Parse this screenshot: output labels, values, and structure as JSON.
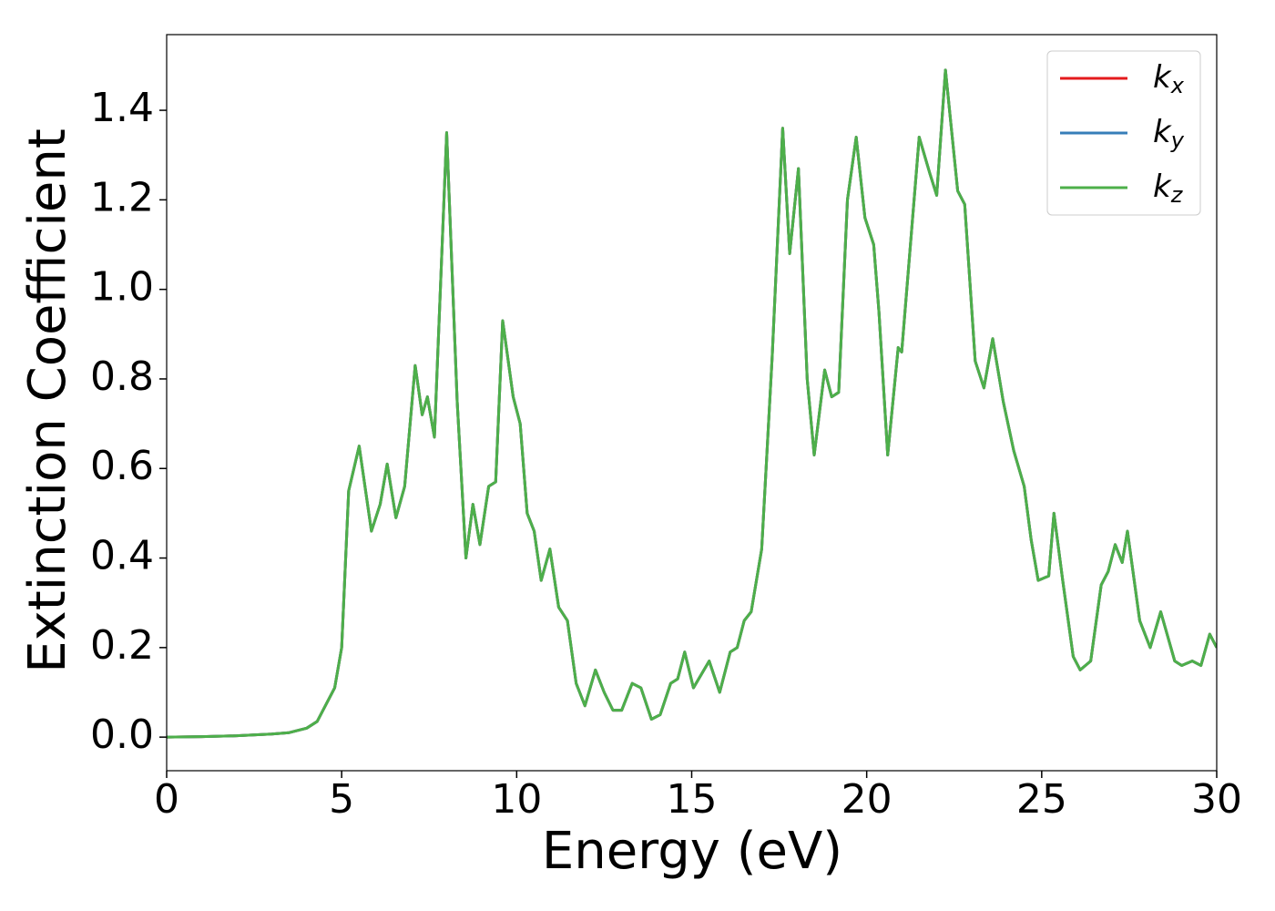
{
  "chart_data": {
    "type": "line",
    "xlabel": "Energy (eV)",
    "ylabel": "Extinction Coefficient",
    "xlim": [
      0,
      30
    ],
    "ylim": [
      -0.075,
      1.569
    ],
    "xticks": [
      0,
      5,
      10,
      15,
      20,
      25,
      30
    ],
    "yticks": [
      {
        "value": 0,
        "label": "0.0"
      },
      0.2,
      0.4,
      0.6,
      0.8,
      {
        "value": 1,
        "label": "1.0"
      },
      1.2,
      1.4
    ],
    "legend": "upper right",
    "x": [
      0,
      1,
      2,
      3,
      3.5,
      4,
      4.3,
      4.6,
      4.8,
      5.0,
      5.2,
      5.5,
      5.85,
      6.1,
      6.3,
      6.55,
      6.8,
      7.1,
      7.3,
      7.45,
      7.65,
      8.0,
      8.3,
      8.55,
      8.75,
      8.95,
      9.2,
      9.4,
      9.6,
      9.9,
      10.1,
      10.3,
      10.5,
      10.7,
      10.95,
      11.2,
      11.45,
      11.7,
      11.95,
      12.25,
      12.5,
      12.75,
      13.0,
      13.3,
      13.55,
      13.85,
      14.1,
      14.4,
      14.6,
      14.8,
      15.05,
      15.5,
      15.8,
      16.1,
      16.3,
      16.5,
      16.7,
      17.0,
      17.3,
      17.6,
      17.8,
      18.05,
      18.3,
      18.5,
      18.8,
      19.0,
      19.2,
      19.45,
      19.7,
      19.95,
      20.2,
      20.35,
      20.6,
      20.9,
      21.0,
      21.5,
      21.8,
      22.0,
      22.25,
      22.6,
      22.8,
      23.1,
      23.35,
      23.6,
      23.9,
      24.2,
      24.5,
      24.7,
      24.9,
      25.2,
      25.35,
      25.6,
      25.9,
      26.1,
      26.4,
      26.7,
      26.9,
      27.1,
      27.3,
      27.45,
      27.8,
      28.1,
      28.4,
      28.8,
      29.0,
      29.3,
      29.55,
      29.8,
      30
    ],
    "series": [
      {
        "name": "kx",
        "color": "#e41a1c",
        "values": [
          0.0,
          0.001,
          0.003,
          0.007,
          0.01,
          0.02,
          0.035,
          0.08,
          0.11,
          0.2,
          0.55,
          0.65,
          0.46,
          0.52,
          0.61,
          0.49,
          0.56,
          0.83,
          0.72,
          0.76,
          0.67,
          1.35,
          0.75,
          0.4,
          0.52,
          0.43,
          0.56,
          0.57,
          0.93,
          0.76,
          0.7,
          0.5,
          0.46,
          0.35,
          0.42,
          0.29,
          0.26,
          0.12,
          0.07,
          0.15,
          0.1,
          0.06,
          0.06,
          0.12,
          0.11,
          0.04,
          0.05,
          0.12,
          0.13,
          0.19,
          0.11,
          0.17,
          0.1,
          0.19,
          0.2,
          0.26,
          0.28,
          0.42,
          0.85,
          1.36,
          1.08,
          1.27,
          0.8,
          0.63,
          0.82,
          0.76,
          0.77,
          1.2,
          1.34,
          1.16,
          1.1,
          0.95,
          0.63,
          0.87,
          0.86,
          1.34,
          1.26,
          1.21,
          1.49,
          1.22,
          1.19,
          0.84,
          0.78,
          0.89,
          0.75,
          0.64,
          0.56,
          0.44,
          0.35,
          0.36,
          0.5,
          0.35,
          0.18,
          0.15,
          0.17,
          0.34,
          0.37,
          0.43,
          0.39,
          0.46,
          0.26,
          0.2,
          0.28,
          0.17,
          0.16,
          0.17,
          0.16,
          0.23,
          0.2
        ]
      },
      {
        "name": "ky",
        "color": "#377eb8",
        "values": [
          0.0,
          0.001,
          0.003,
          0.007,
          0.01,
          0.02,
          0.035,
          0.08,
          0.11,
          0.2,
          0.55,
          0.65,
          0.46,
          0.52,
          0.61,
          0.49,
          0.56,
          0.83,
          0.72,
          0.76,
          0.67,
          1.35,
          0.75,
          0.4,
          0.52,
          0.43,
          0.56,
          0.57,
          0.93,
          0.76,
          0.7,
          0.5,
          0.46,
          0.35,
          0.42,
          0.29,
          0.26,
          0.12,
          0.07,
          0.15,
          0.1,
          0.06,
          0.06,
          0.12,
          0.11,
          0.04,
          0.05,
          0.12,
          0.13,
          0.19,
          0.11,
          0.17,
          0.1,
          0.19,
          0.2,
          0.26,
          0.28,
          0.42,
          0.85,
          1.36,
          1.08,
          1.27,
          0.8,
          0.63,
          0.82,
          0.76,
          0.77,
          1.2,
          1.34,
          1.16,
          1.1,
          0.95,
          0.63,
          0.87,
          0.86,
          1.34,
          1.26,
          1.21,
          1.49,
          1.22,
          1.19,
          0.84,
          0.78,
          0.89,
          0.75,
          0.64,
          0.56,
          0.44,
          0.35,
          0.36,
          0.5,
          0.35,
          0.18,
          0.15,
          0.17,
          0.34,
          0.37,
          0.43,
          0.39,
          0.46,
          0.26,
          0.2,
          0.28,
          0.17,
          0.16,
          0.17,
          0.16,
          0.23,
          0.2
        ]
      },
      {
        "name": "kz",
        "color": "#4daf4a",
        "values": [
          0.0,
          0.001,
          0.003,
          0.007,
          0.01,
          0.02,
          0.035,
          0.08,
          0.11,
          0.2,
          0.55,
          0.65,
          0.46,
          0.52,
          0.61,
          0.49,
          0.56,
          0.83,
          0.72,
          0.76,
          0.67,
          1.35,
          0.75,
          0.4,
          0.52,
          0.43,
          0.56,
          0.57,
          0.93,
          0.76,
          0.7,
          0.5,
          0.46,
          0.35,
          0.42,
          0.29,
          0.26,
          0.12,
          0.07,
          0.15,
          0.1,
          0.06,
          0.06,
          0.12,
          0.11,
          0.04,
          0.05,
          0.12,
          0.13,
          0.19,
          0.11,
          0.17,
          0.1,
          0.19,
          0.2,
          0.26,
          0.28,
          0.42,
          0.85,
          1.36,
          1.08,
          1.27,
          0.8,
          0.63,
          0.82,
          0.76,
          0.77,
          1.2,
          1.34,
          1.16,
          1.1,
          0.95,
          0.63,
          0.87,
          0.86,
          1.34,
          1.26,
          1.21,
          1.49,
          1.22,
          1.19,
          0.84,
          0.78,
          0.89,
          0.75,
          0.64,
          0.56,
          0.44,
          0.35,
          0.36,
          0.5,
          0.35,
          0.18,
          0.15,
          0.17,
          0.34,
          0.37,
          0.43,
          0.39,
          0.46,
          0.26,
          0.2,
          0.28,
          0.17,
          0.16,
          0.17,
          0.16,
          0.23,
          0.2
        ]
      }
    ]
  }
}
